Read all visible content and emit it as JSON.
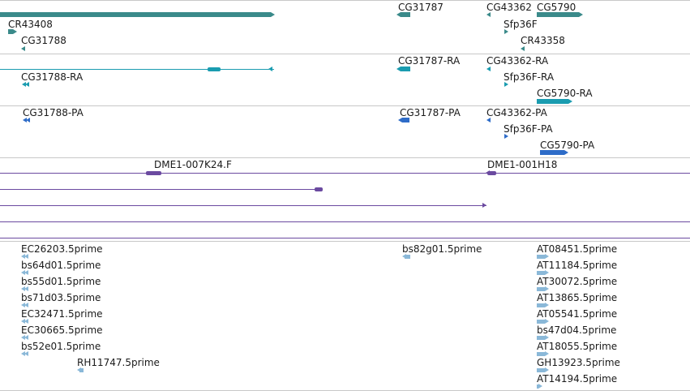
{
  "colors": {
    "gene": "#3a8a8a",
    "mrna": "#1a9cb0",
    "protein": "#2e6cc8",
    "bac": "#6b4aa0",
    "est": "#8ab8d8",
    "separator": "#c8c8c8",
    "text": "#1a1a1a"
  },
  "tracks": [
    {
      "id": "gene",
      "features": [
        {
          "label": "CR43408",
          "shape": "bar",
          "dir": "right"
        },
        {
          "label": "CG31788",
          "shape": "arrow",
          "dir": "left"
        },
        {
          "label": "CG31787",
          "shape": "bar",
          "dir": "left"
        },
        {
          "label": "CG43362",
          "shape": "arrow",
          "dir": "left"
        },
        {
          "label": "Sfp36F",
          "shape": "arrow",
          "dir": "right"
        },
        {
          "label": "CG5790",
          "shape": "bar",
          "dir": "right"
        },
        {
          "label": "CR43358",
          "shape": "arrow",
          "dir": "left"
        }
      ]
    },
    {
      "id": "mrna",
      "features": [
        {
          "label": "",
          "shape": "line",
          "dir": "left"
        },
        {
          "label": "CG31788-RA",
          "shape": "arrow",
          "dir": "left"
        },
        {
          "label": "CG31787-RA",
          "shape": "bar",
          "dir": "left"
        },
        {
          "label": "CG43362-RA",
          "shape": "arrow",
          "dir": "left"
        },
        {
          "label": "Sfp36F-RA",
          "shape": "arrow",
          "dir": "right"
        },
        {
          "label": "CG5790-RA",
          "shape": "bar",
          "dir": "right"
        }
      ]
    },
    {
      "id": "protein",
      "features": [
        {
          "label": "CG31788-PA",
          "shape": "arrow",
          "dir": "left"
        },
        {
          "label": "CG31787-PA",
          "shape": "bar",
          "dir": "left"
        },
        {
          "label": "CG43362-PA",
          "shape": "arrow",
          "dir": "left"
        },
        {
          "label": "Sfp36F-PA",
          "shape": "arrow",
          "dir": "right"
        },
        {
          "label": "CG5790-PA",
          "shape": "bar",
          "dir": "right"
        }
      ]
    },
    {
      "id": "bac",
      "features": [
        {
          "label": "DME1-007K24.F",
          "shape": "line",
          "dir": "none"
        },
        {
          "label": "DME1-001H18",
          "shape": "line",
          "dir": "left"
        },
        {
          "label": "",
          "shape": "line",
          "dir": "right"
        },
        {
          "label": "",
          "shape": "line",
          "dir": "right"
        },
        {
          "label": "",
          "shape": "line",
          "dir": "none"
        },
        {
          "label": "",
          "shape": "line",
          "dir": "none"
        }
      ]
    },
    {
      "id": "est",
      "features": [
        {
          "label": "EC26203.5prime",
          "shape": "arrow",
          "dir": "left"
        },
        {
          "label": "bs64d01.5prime",
          "shape": "arrow",
          "dir": "left"
        },
        {
          "label": "bs55d01.5prime",
          "shape": "arrow",
          "dir": "left"
        },
        {
          "label": "bs71d03.5prime",
          "shape": "arrow",
          "dir": "left"
        },
        {
          "label": "EC32471.5prime",
          "shape": "arrow",
          "dir": "left"
        },
        {
          "label": "EC30665.5prime",
          "shape": "arrow",
          "dir": "left"
        },
        {
          "label": "bs52e01.5prime",
          "shape": "arrow",
          "dir": "left"
        },
        {
          "label": "RH11747.5prime",
          "shape": "arrow",
          "dir": "left"
        },
        {
          "label": "bs82g01.5prime",
          "shape": "arrow",
          "dir": "left"
        },
        {
          "label": "AT08451.5prime",
          "shape": "arrow",
          "dir": "right"
        },
        {
          "label": "AT11184.5prime",
          "shape": "arrow",
          "dir": "right"
        },
        {
          "label": "AT30072.5prime",
          "shape": "arrow",
          "dir": "right"
        },
        {
          "label": "AT13865.5prime",
          "shape": "arrow",
          "dir": "right"
        },
        {
          "label": "AT05541.5prime",
          "shape": "arrow",
          "dir": "right"
        },
        {
          "label": "bs47d04.5prime",
          "shape": "arrow",
          "dir": "right"
        },
        {
          "label": "AT18055.5prime",
          "shape": "arrow",
          "dir": "right"
        },
        {
          "label": "GH13923.5prime",
          "shape": "arrow",
          "dir": "right"
        },
        {
          "label": "AT14194.5prime",
          "shape": "arrow",
          "dir": "right"
        }
      ]
    }
  ]
}
